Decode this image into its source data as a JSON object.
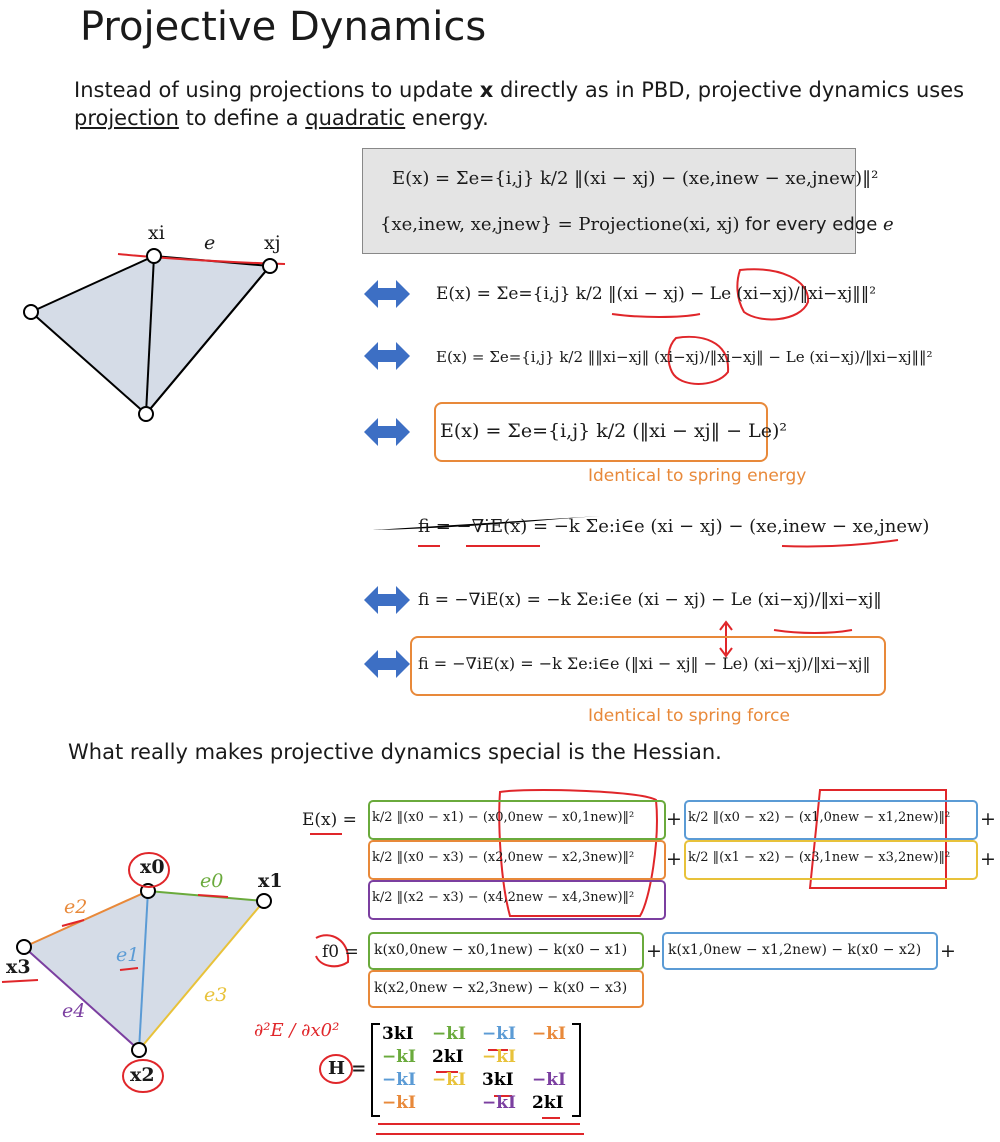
{
  "title": "Projective Dynamics",
  "intro": {
    "p1": "Instead of using projections to update ",
    "x": "x",
    "p2": " directly as in PBD, projective dynamics uses",
    "projection": "projection",
    "p3": " to define a ",
    "quadratic": "quadratic",
    "p4": " energy."
  },
  "box": {
    "line1": "E(x) = Σe={i,j} k/2 ‖(xi − xj) − (xe,inew − xe,jnew)‖²",
    "line2a": "{xe,inew, xe,jnew} = Projectione(xi, xj)",
    "line2b": " for every edge ",
    "line2c": "e"
  },
  "eq": {
    "e2": "E(x) = Σe={i,j} k/2 ‖(xi − xj) − Le (xi−xj)/‖xi−xj‖‖²",
    "e3": "E(x) = Σe={i,j} k/2 ‖‖xi−xj‖ (xi−xj)/‖xi−xj‖ − Le (xi−xj)/‖xi−xj‖‖²",
    "e4": "E(x) = Σe={i,j} k/2 (‖xi − xj‖ − Le)²",
    "note1": "Identical to spring energy",
    "f1": "fi = −∇iE(x) = −k Σe:i∈e (xi − xj) − (xe,inew − xe,jnew)",
    "f2": "fi = −∇iE(x) = −k Σe:i∈e (xi − xj) − Le (xi−xj)/‖xi−xj‖",
    "f3": "fi = −∇iE(x) = −k Σe:i∈e (‖xi − xj‖ − Le) (xi−xj)/‖xi−xj‖",
    "note2": "Identical to spring force"
  },
  "heading2": "What really makes projective dynamics special is the Hessian.",
  "diagram1": {
    "xi": "xi",
    "xj": "xj",
    "e": "e"
  },
  "diagram2": {
    "x0": "x0",
    "x1": "x1",
    "x2": "x2",
    "x3": "x3",
    "e0": "e0",
    "e1": "e1",
    "e2": "e2",
    "e3": "e3",
    "e4": "e4"
  },
  "hess": {
    "E_lhs": "E(x) =",
    "t00": "k/2 ‖(x0 − x1) − (x0,0new − x0,1new)‖²",
    "t01": "k/2 ‖(x0 − x2) − (x1,0new − x1,2new)‖²",
    "t10": "k/2 ‖(x0 − x3) − (x2,0new − x2,3new)‖²",
    "t11": "k/2 ‖(x1 − x2) − (x3,1new − x3,2new)‖²",
    "t20": "k/2 ‖(x2 − x3) − (x4,2new − x4,3new)‖²",
    "f_lhs": "f0 =",
    "f00": "k(x0,0new − x0,1new) − k(x0 − x1)",
    "f01": "k(x1,0new − x1,2new) − k(x0 − x2)",
    "f10": "k(x2,0new − x2,3new) − k(x0 − x3)",
    "plus": "+",
    "hand": "∂²E / ∂x0²",
    "H_lhs": "H =",
    "matrix": [
      [
        "3kI",
        "−kI",
        "−kI",
        "−kI"
      ],
      [
        "−kI",
        "2kI",
        "−kI",
        ""
      ],
      [
        "−kI",
        "−kI",
        "3kI",
        "−kI"
      ],
      [
        "−kI",
        "",
        "−kI",
        "2kI"
      ]
    ]
  },
  "colors": {
    "arrow": "#3d6fc4",
    "orange": "#e8893a",
    "green": "#6aaa3c",
    "blue": "#5b9bd5",
    "yellow": "#e8c23a",
    "purple": "#7b3fa0",
    "red": "#e0262a"
  }
}
